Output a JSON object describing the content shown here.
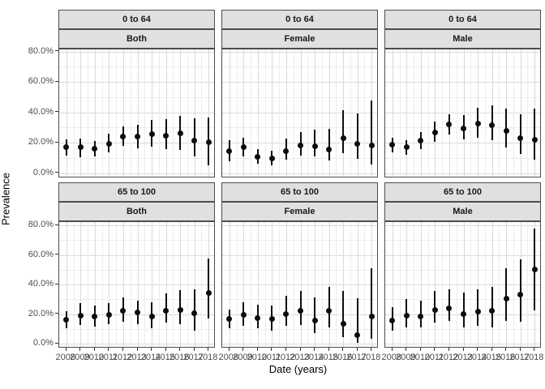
{
  "figure": {
    "x_axis_title": "Date (years)",
    "y_axis_title": "Prevalence",
    "y_tick_labels": [
      "0.0%",
      "20.0%",
      "40.0%",
      "60.0%",
      "80.0%"
    ],
    "x_tick_labels": [
      "2008",
      "2009",
      "2010",
      "2011",
      "2012",
      "2013",
      "2014",
      "2015",
      "2016",
      "2017",
      "2018"
    ]
  },
  "chart_data": {
    "type": "scatter",
    "description": "Faceted point-range plot (point estimate with confidence interval whiskers), 2 age-group rows x 3 sex columns",
    "x": [
      2008,
      2009,
      2010,
      2011,
      2012,
      2013,
      2014,
      2015,
      2016,
      2017,
      2018
    ],
    "xlabel": "Date (years)",
    "ylabel": "Prevalence",
    "y_unit": "percent",
    "ylim": [
      0,
      80
    ],
    "y_major_breaks": [
      0,
      20,
      40,
      60,
      80
    ],
    "y_minor_breaks": [
      10,
      30,
      50,
      70
    ],
    "grid": "major and minor, light grey on white (theme_bw)",
    "legend": "none",
    "row_facets": [
      "0 to 64",
      "65 to 100"
    ],
    "col_facets": [
      "Both",
      "Female",
      "Male"
    ],
    "facets": [
      {
        "age_group": "0 to 64",
        "sex": "Both",
        "values": [
          17,
          17,
          16,
          19.5,
          24,
          24,
          25.5,
          24.5,
          26,
          21.5,
          20.5
        ],
        "ci_low": [
          11.5,
          10.5,
          11,
          13.5,
          18,
          16.5,
          17.5,
          16,
          15.5,
          11,
          5
        ],
        "ci_high": [
          22.5,
          23,
          21,
          26,
          31,
          32,
          35,
          35.5,
          37.5,
          36,
          36.5
        ]
      },
      {
        "age_group": "0 to 64",
        "sex": "Female",
        "values": [
          14.5,
          17,
          11,
          9.5,
          14.5,
          18,
          17.5,
          15.5,
          23,
          19.5,
          18.5
        ],
        "ci_low": [
          8,
          11,
          6,
          5,
          9,
          11.5,
          11,
          8.5,
          13,
          9.5,
          5.5
        ],
        "ci_high": [
          21.5,
          23.5,
          16,
          15,
          23,
          27,
          28.5,
          29,
          41.5,
          39.5,
          48
        ]
      },
      {
        "age_group": "0 to 64",
        "sex": "Male",
        "values": [
          19,
          17,
          21.5,
          27,
          32,
          29.5,
          32.5,
          31.5,
          28,
          23,
          22
        ],
        "ci_low": [
          13.5,
          12,
          16,
          20.5,
          25.5,
          22,
          23.5,
          21.5,
          17,
          12.5,
          9
        ],
        "ci_high": [
          23.5,
          21.5,
          27,
          34,
          39,
          38,
          43,
          44.5,
          42.5,
          39,
          42.5
        ]
      },
      {
        "age_group": "65 to 100",
        "sex": "Both",
        "values": [
          16,
          19,
          18.5,
          19.5,
          22,
          21,
          18.5,
          22,
          23,
          20.5,
          34.5
        ],
        "ci_low": [
          10.5,
          12.5,
          11.5,
          13,
          15,
          13,
          10.5,
          14.5,
          13,
          8.5,
          17
        ],
        "ci_high": [
          22,
          27.5,
          26,
          27.5,
          31,
          29,
          28,
          34,
          36,
          36.5,
          57.5
        ]
      },
      {
        "age_group": "65 to 100",
        "sex": "Female",
        "values": [
          16.5,
          19.5,
          17.5,
          16.5,
          20,
          22,
          15.5,
          22,
          13.5,
          5.5,
          18.5
        ],
        "ci_low": [
          10.5,
          12,
          10.5,
          9,
          12,
          12.5,
          7,
          11,
          4.5,
          0.5,
          3.5
        ],
        "ci_high": [
          23,
          28,
          26.5,
          25.5,
          32.5,
          35.5,
          31,
          38.5,
          35.5,
          30.5,
          51
        ]
      },
      {
        "age_group": "65 to 100",
        "sex": "Male",
        "values": [
          15.5,
          19,
          18.5,
          23,
          24,
          20,
          21.5,
          22,
          30.5,
          33,
          50
        ],
        "ci_low": [
          9,
          11,
          11,
          14,
          15.5,
          11,
          12,
          11,
          15.5,
          15,
          22.5
        ],
        "ci_high": [
          24.5,
          30,
          29,
          35.5,
          36.5,
          34.5,
          36.5,
          38.5,
          51,
          57,
          78
        ]
      }
    ],
    "colors": {
      "point": "#0d0d0d",
      "strip_fill": "#E0E0E0",
      "panel_border": "#4d4d4d",
      "grid_major": "#d9d9d9",
      "grid_minor": "#ececec",
      "tick_text": "#4d4d4d"
    }
  }
}
